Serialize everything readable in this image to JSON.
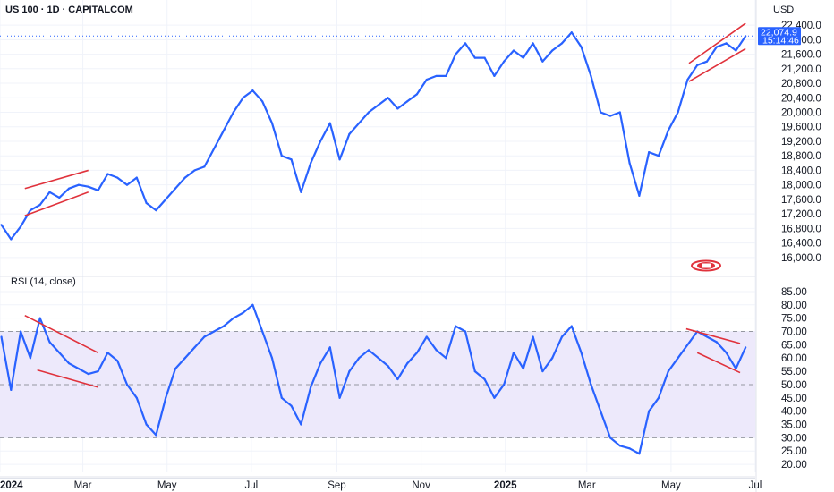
{
  "header": {
    "title": "US 100 · 1D · CAPITALCOM",
    "currency": "USD"
  },
  "colors": {
    "line": "#2962ff",
    "trend": "#e0323c",
    "grid": "#f0f3fa",
    "band": "#ede9fb",
    "badge": "#2962ff",
    "logo": "#e0323c"
  },
  "icons": {
    "logo": "capitalcom-logo-icon"
  },
  "last_price": {
    "price": "22,074.9",
    "countdown": "15:14:46"
  },
  "chart_data": [
    {
      "type": "line",
      "name": "price",
      "x": [
        "2024-01-02",
        "2024-01-09",
        "2024-01-16",
        "2024-01-23",
        "2024-01-30",
        "2024-02-06",
        "2024-02-13",
        "2024-02-20",
        "2024-02-27",
        "2024-03-05",
        "2024-03-12",
        "2024-03-19",
        "2024-03-26",
        "2024-04-02",
        "2024-04-09",
        "2024-04-16",
        "2024-04-23",
        "2024-04-30",
        "2024-05-07",
        "2024-05-14",
        "2024-05-21",
        "2024-05-28",
        "2024-06-04",
        "2024-06-11",
        "2024-06-18",
        "2024-06-25",
        "2024-07-02",
        "2024-07-09",
        "2024-07-16",
        "2024-07-23",
        "2024-07-30",
        "2024-08-06",
        "2024-08-13",
        "2024-08-20",
        "2024-08-27",
        "2024-09-03",
        "2024-09-10",
        "2024-09-17",
        "2024-09-24",
        "2024-10-01",
        "2024-10-08",
        "2024-10-15",
        "2024-10-22",
        "2024-10-29",
        "2024-11-05",
        "2024-11-12",
        "2024-11-19",
        "2024-11-26",
        "2024-12-03",
        "2024-12-10",
        "2024-12-17",
        "2024-12-24",
        "2024-12-31",
        "2025-01-07",
        "2025-01-14",
        "2025-01-21",
        "2025-01-28",
        "2025-02-04",
        "2025-02-11",
        "2025-02-18",
        "2025-02-25",
        "2025-03-04",
        "2025-03-11",
        "2025-03-18",
        "2025-03-25",
        "2025-04-01",
        "2025-04-08",
        "2025-04-15",
        "2025-04-22",
        "2025-04-29",
        "2025-05-06",
        "2025-05-13",
        "2025-05-20",
        "2025-05-27",
        "2025-06-03",
        "2025-06-10",
        "2025-06-17",
        "2025-06-24"
      ],
      "y": [
        16900,
        16500,
        16850,
        17300,
        17450,
        17800,
        17650,
        17900,
        18000,
        17950,
        17850,
        18300,
        18200,
        18000,
        18200,
        17500,
        17300,
        17600,
        17900,
        18200,
        18400,
        18500,
        19000,
        19500,
        20000,
        20400,
        20600,
        20300,
        19700,
        18800,
        18700,
        17800,
        18600,
        19200,
        19700,
        18700,
        19400,
        19700,
        20000,
        20200,
        20400,
        20100,
        20300,
        20500,
        20900,
        21000,
        21000,
        21600,
        21900,
        21500,
        21500,
        21000,
        21400,
        21700,
        21500,
        21900,
        21400,
        21700,
        21900,
        22200,
        21800,
        21000,
        20000,
        19900,
        20000,
        18600,
        17700,
        18900,
        18800,
        19500,
        20000,
        20900,
        21300,
        21400,
        21800,
        21900,
        21700,
        22100
      ],
      "ylim": [
        15700,
        22600
      ],
      "y_ticks": [
        "16,000.0",
        "16,400.0",
        "16,800.0",
        "17,200.0",
        "17,600.0",
        "18,000.0",
        "18,400.0",
        "18,800.0",
        "19,200.0",
        "19,600.0",
        "20,000.0",
        "20,400.0",
        "20,800.0",
        "21,200.0",
        "21,600.0",
        "22,000.0",
        "22,400.0"
      ],
      "trendlines": [
        {
          "from": [
            "2024-01-19",
            17900
          ],
          "to": [
            "2024-03-05",
            18400
          ]
        },
        {
          "from": [
            "2024-01-19",
            17150
          ],
          "to": [
            "2024-03-05",
            17800
          ]
        },
        {
          "from": [
            "2025-05-14",
            21350
          ],
          "to": [
            "2025-06-24",
            22450
          ]
        },
        {
          "from": [
            "2025-05-14",
            20850
          ],
          "to": [
            "2025-06-24",
            21750
          ]
        }
      ]
    },
    {
      "type": "line",
      "name": "rsi",
      "title": "RSI (14, close)",
      "x": [
        "2024-01-02",
        "2024-01-09",
        "2024-01-16",
        "2024-01-23",
        "2024-01-30",
        "2024-02-06",
        "2024-02-13",
        "2024-02-20",
        "2024-02-27",
        "2024-03-05",
        "2024-03-12",
        "2024-03-19",
        "2024-03-26",
        "2024-04-02",
        "2024-04-09",
        "2024-04-16",
        "2024-04-23",
        "2024-04-30",
        "2024-05-07",
        "2024-05-14",
        "2024-05-21",
        "2024-05-28",
        "2024-06-04",
        "2024-06-11",
        "2024-06-18",
        "2024-06-25",
        "2024-07-02",
        "2024-07-09",
        "2024-07-16",
        "2024-07-23",
        "2024-07-30",
        "2024-08-06",
        "2024-08-13",
        "2024-08-20",
        "2024-08-27",
        "2024-09-03",
        "2024-09-10",
        "2024-09-17",
        "2024-09-24",
        "2024-10-01",
        "2024-10-08",
        "2024-10-15",
        "2024-10-22",
        "2024-10-29",
        "2024-11-05",
        "2024-11-12",
        "2024-11-19",
        "2024-11-26",
        "2024-12-03",
        "2024-12-10",
        "2024-12-17",
        "2024-12-24",
        "2024-12-31",
        "2025-01-07",
        "2025-01-14",
        "2025-01-21",
        "2025-01-28",
        "2025-02-04",
        "2025-02-11",
        "2025-02-18",
        "2025-02-25",
        "2025-03-04",
        "2025-03-11",
        "2025-03-18",
        "2025-03-25",
        "2025-04-01",
        "2025-04-08",
        "2025-04-15",
        "2025-04-22",
        "2025-04-29",
        "2025-05-06",
        "2025-05-13",
        "2025-05-20",
        "2025-05-27",
        "2025-06-03",
        "2025-06-10",
        "2025-06-17",
        "2025-06-24"
      ],
      "y": [
        68,
        48,
        70,
        60,
        75,
        66,
        62,
        58,
        56,
        54,
        55,
        62,
        59,
        50,
        45,
        35,
        31,
        45,
        56,
        60,
        64,
        68,
        70,
        72,
        75,
        77,
        80,
        70,
        60,
        45,
        42,
        35,
        49,
        58,
        64,
        45,
        55,
        60,
        63,
        60,
        57,
        52,
        58,
        62,
        68,
        63,
        60,
        72,
        70,
        55,
        52,
        45,
        50,
        62,
        56,
        68,
        55,
        60,
        68,
        72,
        62,
        50,
        40,
        30,
        27,
        26,
        24,
        40,
        45,
        55,
        60,
        65,
        70,
        68,
        66,
        62,
        56,
        64
      ],
      "ylim": [
        17,
        87
      ],
      "y_ticks": [
        "20.00",
        "25.00",
        "30.00",
        "35.00",
        "40.00",
        "45.00",
        "50.00",
        "55.00",
        "60.00",
        "65.00",
        "70.00",
        "75.00",
        "80.00",
        "85.00"
      ],
      "levels": [
        70,
        50,
        30
      ],
      "trendlines": [
        {
          "from": [
            "2024-01-19",
            76
          ],
          "to": [
            "2024-03-12",
            62
          ]
        },
        {
          "from": [
            "2024-01-28",
            55.5
          ],
          "to": [
            "2024-03-12",
            49
          ]
        },
        {
          "from": [
            "2025-05-12",
            71
          ],
          "to": [
            "2025-06-20",
            65.5
          ]
        },
        {
          "from": [
            "2025-05-20",
            62
          ],
          "to": [
            "2025-06-20",
            54.5
          ]
        }
      ]
    }
  ],
  "x_axis": {
    "domain": [
      "2024-01-01",
      "2025-07-01"
    ],
    "labels": [
      {
        "date": "2024-01-01",
        "text": "2024",
        "bold": true
      },
      {
        "date": "2024-03-01",
        "text": "Mar",
        "bold": false
      },
      {
        "date": "2024-05-01",
        "text": "May",
        "bold": false
      },
      {
        "date": "2024-07-01",
        "text": "Jul",
        "bold": false
      },
      {
        "date": "2024-09-01",
        "text": "Sep",
        "bold": false
      },
      {
        "date": "2024-11-01",
        "text": "Nov",
        "bold": false
      },
      {
        "date": "2025-01-01",
        "text": "2025",
        "bold": true
      },
      {
        "date": "2025-03-01",
        "text": "Mar",
        "bold": false
      },
      {
        "date": "2025-05-01",
        "text": "May",
        "bold": false
      },
      {
        "date": "2025-07-01",
        "text": "Jul",
        "bold": false
      }
    ]
  }
}
